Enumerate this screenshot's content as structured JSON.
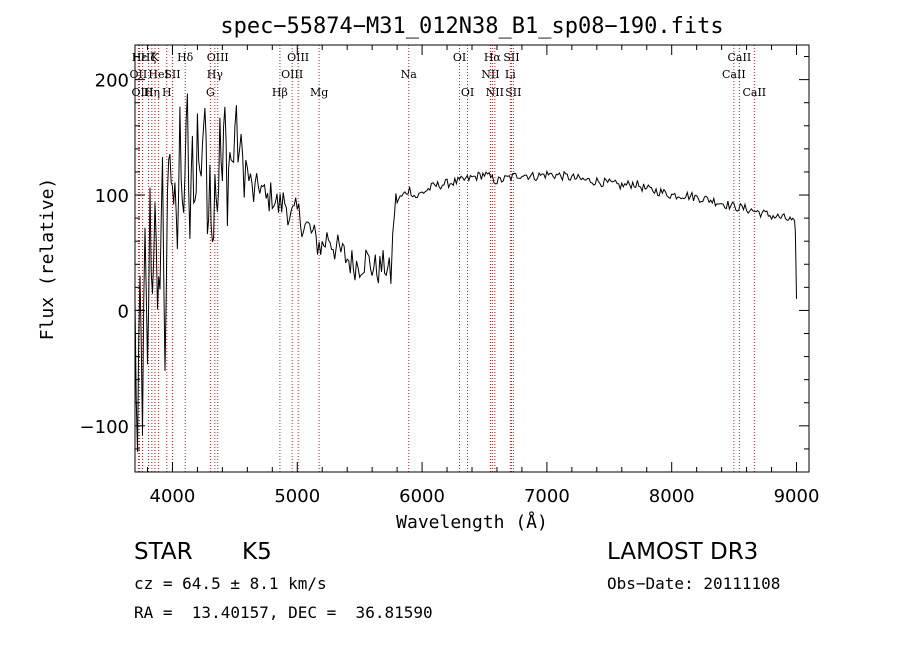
{
  "chart_data": {
    "type": "line",
    "title": "spec−55874−M31_012N38_B1_sp08−190.fits",
    "xlabel": "Wavelength (Å)",
    "ylabel": "Flux (relative)",
    "xlim": [
      3700,
      9100
    ],
    "ylim": [
      -140,
      230
    ],
    "x_ticks": [
      4000,
      5000,
      6000,
      7000,
      8000,
      9000
    ],
    "y_ticks": [
      -100,
      0,
      100,
      200
    ],
    "x_tick_labels": [
      "4000",
      "5000",
      "6000",
      "7000",
      "8000",
      "9000"
    ],
    "y_tick_labels": [
      "−100",
      "0",
      "100",
      "200"
    ],
    "series": [
      {
        "name": "flux",
        "color": "#000000",
        "x": [
          3700,
          3720,
          3740,
          3760,
          3780,
          3800,
          3820,
          3840,
          3860,
          3880,
          3900,
          3920,
          3940,
          3960,
          3980,
          4000,
          4020,
          4040,
          4060,
          4080,
          4100,
          4120,
          4140,
          4160,
          4180,
          4200,
          4220,
          4240,
          4260,
          4280,
          4300,
          4320,
          4340,
          4360,
          4380,
          4400,
          4420,
          4440,
          4460,
          4480,
          4500,
          4550,
          4600,
          4650,
          4700,
          4750,
          4800,
          4850,
          4900,
          4950,
          5000,
          5050,
          5100,
          5150,
          5200,
          5250,
          5300,
          5350,
          5400,
          5450,
          5500,
          5550,
          5600,
          5650,
          5700,
          5750,
          5780,
          5800,
          5850,
          5900,
          5950,
          6000,
          6100,
          6200,
          6300,
          6400,
          6500,
          6600,
          6700,
          6800,
          6900,
          7000,
          7100,
          7200,
          7300,
          7400,
          7500,
          7600,
          7700,
          7800,
          7900,
          8000,
          8100,
          8200,
          8300,
          8400,
          8500,
          8600,
          8700,
          8800,
          8900,
          8960,
          8980,
          8990,
          9000
        ],
        "y": [
          0,
          -130,
          20,
          -90,
          60,
          -60,
          90,
          10,
          110,
          -20,
          40,
          120,
          -40,
          80,
          140,
          90,
          130,
          60,
          150,
          80,
          120,
          170,
          60,
          140,
          90,
          160,
          110,
          150,
          180,
          70,
          140,
          50,
          130,
          90,
          150,
          110,
          170,
          100,
          140,
          120,
          160,
          130,
          120,
          100,
          110,
          95,
          100,
          90,
          95,
          80,
          85,
          75,
          70,
          60,
          55,
          65,
          55,
          50,
          45,
          40,
          40,
          45,
          38,
          35,
          40,
          30,
          90,
          95,
          100,
          105,
          98,
          102,
          108,
          110,
          112,
          115,
          118,
          112,
          115,
          118,
          116,
          118,
          117,
          115,
          113,
          112,
          110,
          108,
          110,
          105,
          103,
          100,
          100,
          98,
          96,
          93,
          90,
          88,
          85,
          82,
          80,
          78,
          75,
          72,
          10
        ]
      }
    ],
    "lines": [
      {
        "name": "Hε",
        "x": 3735,
        "row": 1
      },
      {
        "name": "OII",
        "x": 3727,
        "row": 2
      },
      {
        "name": "OIII",
        "x": 3760,
        "row": 3
      },
      {
        "name": "Hζ",
        "x": 3808,
        "row": 1
      },
      {
        "name": "Hη",
        "x": 3835,
        "row": 3
      },
      {
        "name": "K",
        "x": 3860,
        "row": 1
      },
      {
        "name": "HeI",
        "x": 3889,
        "row": 2
      },
      {
        "name": "H",
        "x": 3955,
        "row": 3
      },
      {
        "name": "SII",
        "x": 4000,
        "row": 2
      },
      {
        "name": "Hδ",
        "x": 4102,
        "row": 1
      },
      {
        "name": "OIII",
        "x": 4363,
        "row": 1
      },
      {
        "name": "Hγ",
        "x": 4340,
        "row": 2
      },
      {
        "name": "G",
        "x": 4304,
        "row": 3
      },
      {
        "name": "Hβ",
        "x": 4861,
        "row": 3
      },
      {
        "name": "OIII",
        "x": 5007,
        "row": 1
      },
      {
        "name": "OIII",
        "x": 4959,
        "row": 2
      },
      {
        "name": "Mg",
        "x": 5175,
        "row": 3
      },
      {
        "name": "Na",
        "x": 5893,
        "row": 2
      },
      {
        "name": "OI",
        "x": 6300,
        "row": 1
      },
      {
        "name": "OI",
        "x": 6364,
        "row": 3
      },
      {
        "name": "Hα",
        "x": 6563,
        "row": 1
      },
      {
        "name": "NII",
        "x": 6548,
        "row": 2
      },
      {
        "name": "NII",
        "x": 6583,
        "row": 3
      },
      {
        "name": "SII",
        "x": 6716,
        "row": 1
      },
      {
        "name": "Li",
        "x": 6707,
        "row": 2
      },
      {
        "name": "SII",
        "x": 6731,
        "row": 3
      },
      {
        "name": "CaII",
        "x": 8542,
        "row": 1
      },
      {
        "name": "CaII",
        "x": 8498,
        "row": 2
      },
      {
        "name": "CaII",
        "x": 8662,
        "row": 3
      }
    ],
    "line_color": "#b22222"
  },
  "info": {
    "object_class": "STAR",
    "subclass": "K5",
    "survey": "LAMOST DR3",
    "cz": "cz = 64.5 ± 8.1 km/s",
    "obs_date": "Obs−Date: 20111108",
    "coords": "RA =  13.40157, DEC =  36.81590"
  }
}
